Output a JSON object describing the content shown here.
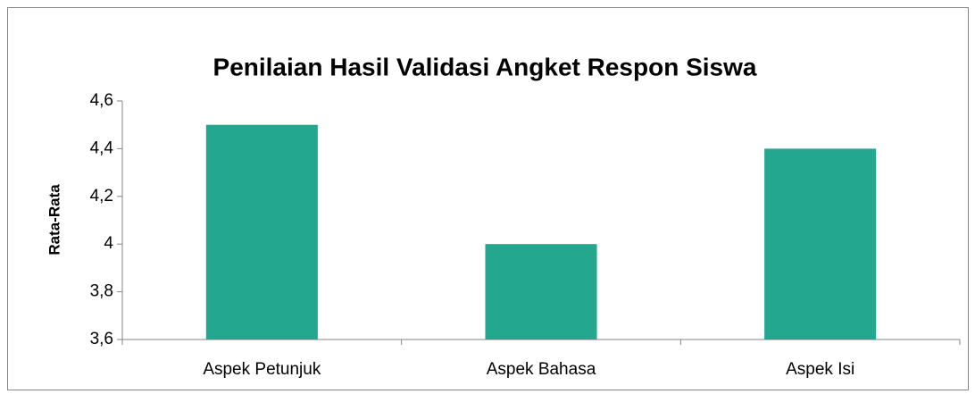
{
  "chart_data": {
    "type": "bar",
    "title": "Penilaian Hasil Validasi Angket Respon Siswa",
    "y_label": "Rata-Rata",
    "categories": [
      "Aspek Petunjuk",
      "Aspek Bahasa",
      "Aspek Isi"
    ],
    "values": [
      4.5,
      4,
      4.4
    ],
    "color": "#24a78f",
    "ylim": [
      3.6,
      4.6
    ],
    "yticks": [
      {
        "value": 3.6,
        "label": "3,6"
      },
      {
        "value": 3.8,
        "label": "3,8"
      },
      4,
      {
        "value": 4.2,
        "label": "4,2"
      },
      {
        "value": 4.4,
        "label": "4,4"
      },
      {
        "value": 4.6,
        "label": "4,6"
      }
    ],
    "grid": false
  }
}
